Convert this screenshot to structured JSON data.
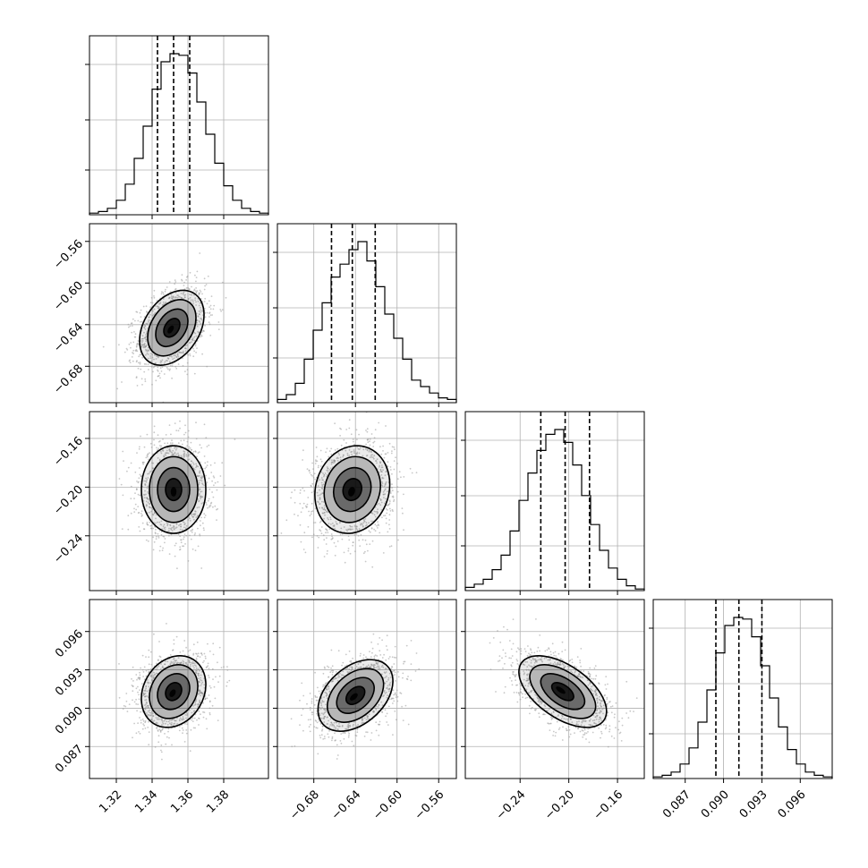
{
  "chart_data": {
    "type": "corner",
    "n_params": 4,
    "axis_ranges": [
      [
        1.305,
        1.405
      ],
      [
        -0.715,
        -0.543
      ],
      [
        -0.285,
        -0.138
      ],
      [
        0.0845,
        0.0985
      ]
    ],
    "ticks": [
      [
        1.32,
        1.34,
        1.36,
        1.38
      ],
      [
        -0.68,
        -0.64,
        -0.6,
        -0.56
      ],
      [
        -0.24,
        -0.2,
        -0.16
      ],
      [
        0.087,
        0.09,
        0.093,
        0.096
      ]
    ],
    "tick_labels": [
      [
        "1.32",
        "1.34",
        "1.36",
        "1.38"
      ],
      [
        "−0.68",
        "−0.64",
        "−0.60",
        "−0.56"
      ],
      [
        "−0.24",
        "−0.20",
        "−0.16"
      ],
      [
        "0.087",
        "0.090",
        "0.093",
        "0.096"
      ]
    ],
    "histogram_counts": [
      [
        1,
        2,
        4,
        9,
        19,
        35,
        55,
        78,
        95,
        100,
        99,
        88,
        70,
        50,
        32,
        18,
        9,
        4,
        2,
        1
      ],
      [
        2,
        5,
        12,
        27,
        45,
        62,
        78,
        86,
        95,
        100,
        88,
        72,
        55,
        40,
        27,
        14,
        10,
        6,
        3,
        2
      ],
      [
        2,
        4,
        7,
        13,
        22,
        37,
        56,
        73,
        87,
        97,
        100,
        92,
        78,
        59,
        41,
        25,
        14,
        7,
        3,
        1
      ],
      [
        1,
        2,
        4,
        9,
        19,
        35,
        55,
        78,
        95,
        100,
        99,
        88,
        70,
        50,
        32,
        18,
        9,
        4,
        2,
        1
      ]
    ],
    "quantiles": [
      [
        1.343,
        1.352,
        1.361
      ],
      [
        -0.663,
        -0.643,
        -0.621
      ],
      [
        -0.223,
        -0.203,
        -0.183
      ],
      [
        0.0894,
        0.0912,
        0.093
      ]
    ],
    "pair_stats": {
      "1-0": {
        "mx": 1.351,
        "my": -0.643,
        "sx": 0.009,
        "sy": 0.018,
        "rho": 0.35
      },
      "2-0": {
        "mx": 1.352,
        "my": -0.202,
        "sx": 0.009,
        "sy": 0.018,
        "rho": 0.0
      },
      "2-1": {
        "mx": -0.643,
        "my": -0.202,
        "sx": 0.018,
        "sy": 0.018,
        "rho": 0.12
      },
      "3-0": {
        "mx": 1.352,
        "my": 0.0913,
        "sx": 0.009,
        "sy": 0.0014,
        "rho": 0.2
      },
      "3-1": {
        "mx": -0.64,
        "my": 0.091,
        "sx": 0.018,
        "sy": 0.0014,
        "rho": 0.4
      },
      "3-2": {
        "mx": -0.205,
        "my": 0.0913,
        "sx": 0.018,
        "sy": 0.0014,
        "rho": -0.55
      }
    },
    "contour_levels_sigma": [
      0.5,
      1.0,
      1.5,
      2.0
    ],
    "grid": true,
    "colors": {
      "hist": "#000000",
      "quantile": "#000000",
      "scatter": "#9a9a9a",
      "grid": "#b0b0b0",
      "density": "#000000"
    }
  }
}
